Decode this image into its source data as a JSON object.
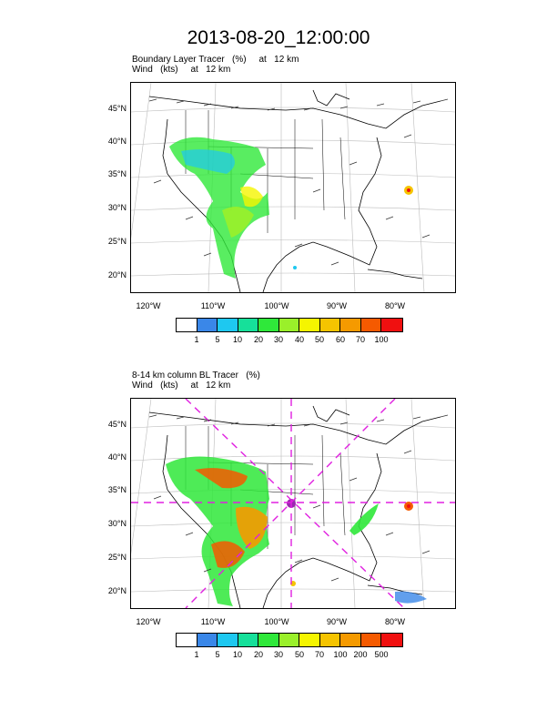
{
  "page_title": "2013-08-20_12:00:00",
  "panels": [
    {
      "line1": "Boundary Layer Tracer   (%)     at   12 km",
      "line2": "Wind   (kts)     at   12 km",
      "colorbar_labels": [
        "1",
        "5",
        "10",
        "20",
        "30",
        "40",
        "50",
        "60",
        "70",
        "100"
      ]
    },
    {
      "line1": "8-14 km column BL Tracer   (%)",
      "line2": "Wind   (kts)     at   12 km",
      "colorbar_labels": [
        "1",
        "5",
        "10",
        "20",
        "30",
        "50",
        "70",
        "100",
        "200",
        "500"
      ]
    }
  ],
  "lat_labels": [
    "45°N",
    "40°N",
    "35°N",
    "30°N",
    "25°N",
    "20°N"
  ],
  "lon_labels": [
    "120°W",
    "110°W",
    "100°W",
    "90°W",
    "80°W"
  ],
  "colorbar_colors": [
    "#ffffff",
    "#3a87e8",
    "#1ec8f0",
    "#16e09a",
    "#2fe83a",
    "#9af02a",
    "#f5f500",
    "#f5c400",
    "#f59a00",
    "#f55a00",
    "#f01010"
  ]
}
